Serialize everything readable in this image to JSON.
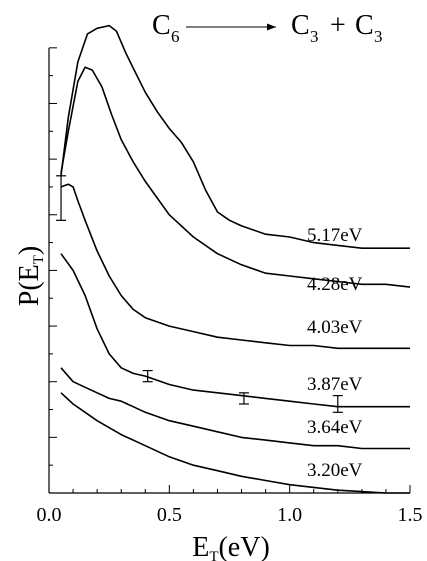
{
  "chart_data": {
    "type": "line",
    "title": {
      "reactant": "C",
      "reactant_sub": "6",
      "product_a": "C",
      "product_a_sub": "3",
      "plus": "+",
      "product_b": "C",
      "product_b_sub": "3"
    },
    "xlabel": {
      "main": "E",
      "sub": "T",
      "rest": "(eV)"
    },
    "ylabel": {
      "main": "P(E",
      "sub": "T",
      "rest": ")"
    },
    "xlim": [
      0,
      1.5
    ],
    "xticks": [
      "0.0",
      "0.5",
      "1.0",
      "1.5"
    ],
    "ylim": [
      0,
      17
    ],
    "grid": false,
    "series": [
      {
        "name": "5.17eV",
        "x": [
          0.05,
          0.08,
          0.12,
          0.16,
          0.2,
          0.25,
          0.28,
          0.32,
          0.36,
          0.4,
          0.45,
          0.5,
          0.55,
          0.6,
          0.65,
          0.7,
          0.75,
          0.8,
          0.9,
          1.0,
          1.1,
          1.2,
          1.3,
          1.4,
          1.5
        ],
        "y": [
          11.4,
          13.5,
          15.5,
          16.5,
          16.7,
          16.8,
          16.6,
          15.8,
          15.1,
          14.4,
          13.7,
          13.1,
          12.6,
          11.9,
          10.9,
          10.1,
          9.8,
          9.6,
          9.3,
          9.2,
          9.0,
          8.9,
          8.8,
          8.8,
          8.8
        ]
      },
      {
        "name": "4.28eV",
        "x": [
          0.05,
          0.08,
          0.12,
          0.15,
          0.18,
          0.22,
          0.26,
          0.3,
          0.35,
          0.4,
          0.45,
          0.5,
          0.6,
          0.7,
          0.8,
          0.9,
          1.0,
          1.1,
          1.2,
          1.3,
          1.4,
          1.5
        ],
        "y": [
          11.5,
          13.0,
          14.8,
          15.3,
          15.2,
          14.6,
          13.6,
          12.7,
          11.9,
          11.2,
          10.6,
          10.0,
          9.2,
          8.6,
          8.2,
          7.9,
          7.8,
          7.7,
          7.6,
          7.5,
          7.5,
          7.4
        ]
      },
      {
        "name": "4.03eV",
        "x": [
          0.05,
          0.08,
          0.1,
          0.12,
          0.15,
          0.2,
          0.25,
          0.3,
          0.35,
          0.4,
          0.5,
          0.6,
          0.7,
          0.8,
          0.9,
          1.0,
          1.1,
          1.2,
          1.3,
          1.4,
          1.5
        ],
        "y": [
          11.0,
          11.1,
          11.0,
          10.5,
          9.8,
          8.7,
          7.8,
          7.1,
          6.6,
          6.3,
          6.0,
          5.8,
          5.6,
          5.5,
          5.4,
          5.3,
          5.3,
          5.2,
          5.2,
          5.2,
          5.2
        ]
      },
      {
        "name": "3.87eV",
        "x": [
          0.05,
          0.1,
          0.15,
          0.2,
          0.25,
          0.3,
          0.35,
          0.4,
          0.5,
          0.6,
          0.7,
          0.8,
          0.9,
          1.0,
          1.1,
          1.2,
          1.3,
          1.4,
          1.5
        ],
        "y": [
          8.6,
          8.0,
          7.1,
          5.9,
          5.0,
          4.5,
          4.3,
          4.2,
          3.9,
          3.7,
          3.6,
          3.5,
          3.4,
          3.3,
          3.2,
          3.1,
          3.1,
          3.1,
          3.1
        ],
        "error_bars": [
          {
            "x": 0.05,
            "y": 10.6,
            "err": 0.8
          },
          {
            "x": 0.41,
            "y": 4.2,
            "err": 0.2
          },
          {
            "x": 0.81,
            "y": 3.4,
            "err": 0.2
          },
          {
            "x": 1.2,
            "y": 3.2,
            "err": 0.3
          }
        ]
      },
      {
        "name": "3.64eV",
        "x": [
          0.05,
          0.1,
          0.15,
          0.2,
          0.25,
          0.3,
          0.35,
          0.4,
          0.5,
          0.6,
          0.7,
          0.8,
          0.9,
          1.0,
          1.1,
          1.2,
          1.3,
          1.4,
          1.5
        ],
        "y": [
          4.5,
          4.0,
          3.8,
          3.6,
          3.4,
          3.3,
          3.1,
          2.9,
          2.6,
          2.4,
          2.2,
          2.0,
          1.9,
          1.8,
          1.7,
          1.7,
          1.6,
          1.6,
          1.6
        ]
      },
      {
        "name": "3.20eV",
        "x": [
          0.05,
          0.1,
          0.15,
          0.2,
          0.3,
          0.4,
          0.5,
          0.6,
          0.7,
          0.8,
          0.9,
          1.0,
          1.1,
          1.2,
          1.3,
          1.4,
          1.5
        ],
        "y": [
          3.6,
          3.2,
          2.9,
          2.6,
          2.1,
          1.7,
          1.3,
          1.0,
          0.8,
          0.6,
          0.45,
          0.3,
          0.2,
          0.1,
          0.05,
          0.0,
          0.0
        ]
      }
    ]
  }
}
